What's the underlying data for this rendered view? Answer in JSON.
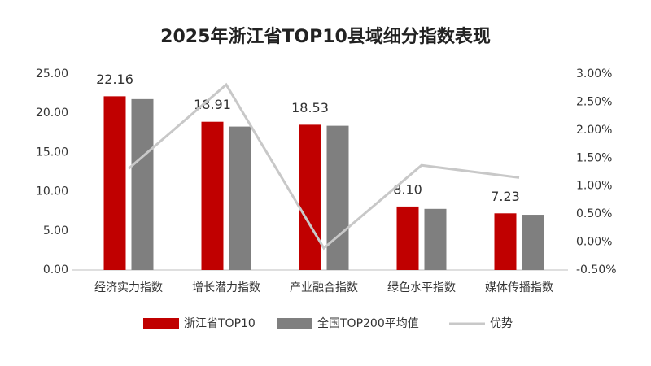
{
  "chart_data": {
    "type": "bar-line",
    "title": "2025年浙江省TOP10县域细分指数表现",
    "categories": [
      "经济实力指数",
      "增长潜力指数",
      "产业融合指数",
      "绿色水平指数",
      "媒体传播指数"
    ],
    "series": [
      {
        "name": "浙江省TOP10",
        "type": "bar",
        "color": "#c00000",
        "values": [
          22.16,
          18.91,
          18.53,
          8.1,
          7.23
        ],
        "value_labels": [
          "22.16",
          "18.91",
          "18.53",
          "8.10",
          "7.23"
        ]
      },
      {
        "name": "全国TOP200平均值",
        "type": "bar",
        "color": "#7f7f7f",
        "values": [
          21.8,
          18.3,
          18.4,
          7.8,
          7.05
        ]
      },
      {
        "name": "优势",
        "type": "line",
        "axis": "y2",
        "color": "#c8c8c8",
        "values": [
          1.31,
          2.81,
          -0.11,
          1.37,
          1.15
        ]
      }
    ],
    "ylim": [
      0,
      25
    ],
    "yticks": [
      {
        "value": 0,
        "label": "0.00"
      },
      {
        "value": 5,
        "label": "5.00"
      },
      {
        "value": 10,
        "label": "10.00"
      },
      {
        "value": 15,
        "label": "15.00"
      },
      {
        "value": 20,
        "label": "20.00"
      },
      {
        "value": 25,
        "label": "25.00"
      }
    ],
    "y2lim": [
      -0.5,
      3
    ],
    "y2ticks": [
      {
        "value": -0.5,
        "label": "-0.50%"
      },
      {
        "value": 0,
        "label": "0.00%"
      },
      {
        "value": 0.5,
        "label": "0.50%"
      },
      {
        "value": 1,
        "label": "1.00%"
      },
      {
        "value": 1.5,
        "label": "1.50%"
      },
      {
        "value": 2,
        "label": "2.00%"
      },
      {
        "value": 2.5,
        "label": "2.50%"
      },
      {
        "value": 3,
        "label": "3.00%"
      }
    ],
    "legend": "bottom"
  }
}
